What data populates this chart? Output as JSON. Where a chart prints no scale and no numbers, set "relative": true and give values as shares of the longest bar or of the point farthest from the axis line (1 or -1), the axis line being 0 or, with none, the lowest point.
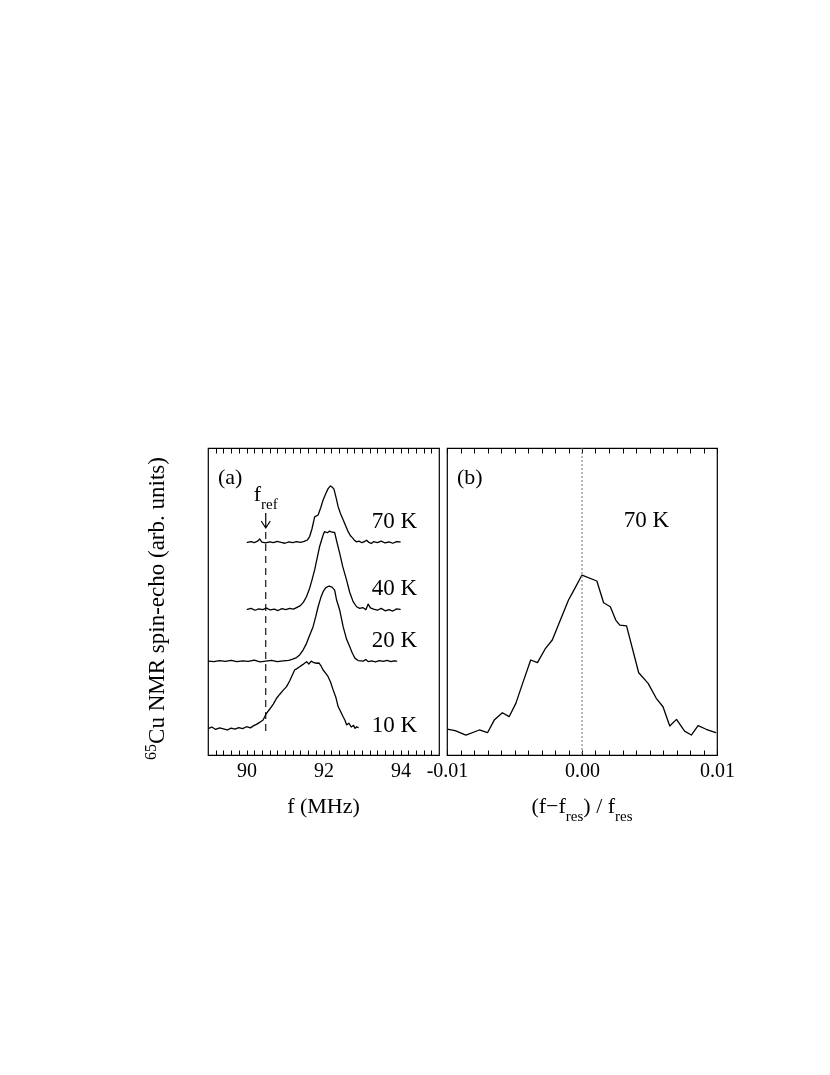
{
  "chart_data": [
    {
      "type": "line",
      "xlabel": "f (MHz)",
      "ylabel": "$^{65}$Cu NMR spin-echo (arb. units)",
      "annotations": [
        "(a)"
      ],
      "relative": true,
      "xlim": [
        89,
        95
      ],
      "xticks": [
        {
          "value": 89.2,
          "label": null
        },
        {
          "value": 89.4,
          "label": null
        },
        {
          "value": 89.6,
          "label": null
        },
        {
          "value": 89.8,
          "label": null
        },
        90,
        {
          "value": 90.2,
          "label": null
        },
        {
          "value": 90.4,
          "label": null
        },
        {
          "value": 90.6,
          "label": null
        },
        {
          "value": 90.8,
          "label": null
        },
        {
          "value": 91,
          "label": null
        },
        {
          "value": 91.2,
          "label": null
        },
        {
          "value": 91.4,
          "label": null
        },
        {
          "value": 91.6,
          "label": null
        },
        {
          "value": 91.8,
          "label": null
        },
        92,
        {
          "value": 92.2,
          "label": null
        },
        {
          "value": 92.4,
          "label": null
        },
        {
          "value": 92.6,
          "label": null
        },
        {
          "value": 92.8,
          "label": null
        },
        {
          "value": 93,
          "label": null
        },
        {
          "value": 93.2,
          "label": null
        },
        {
          "value": 93.4,
          "label": null
        },
        {
          "value": 93.6,
          "label": null
        },
        {
          "value": 93.8,
          "label": null
        },
        94,
        {
          "value": 94.2,
          "label": null
        },
        {
          "value": 94.4,
          "label": null
        },
        {
          "value": 94.6,
          "label": null
        },
        {
          "value": 94.8,
          "label": null
        }
      ],
      "ref_lines": [
        {
          "axis": "x",
          "value": 90.5,
          "label": "f$_{ref}$",
          "color": "#000000",
          "line_style": "dashed"
        }
      ],
      "series": [
        {
          "name": "70 K",
          "color": "#000000",
          "x": [
            90.02,
            90.12,
            90.2,
            90.3,
            90.34,
            90.4,
            90.5,
            90.6,
            90.7,
            90.8,
            90.9,
            91.0,
            91.1,
            91.2,
            91.3,
            91.4,
            91.5,
            91.58,
            91.64,
            91.7,
            91.77,
            91.86,
            91.93,
            91.99,
            92.06,
            92.12,
            92.18,
            92.22,
            92.27,
            92.33,
            92.38,
            92.44,
            92.51,
            92.58,
            92.64,
            92.7,
            92.76,
            92.81,
            92.86,
            92.92,
            93.0,
            93.06,
            93.12,
            93.18,
            93.24,
            93.3,
            93.4,
            93.5,
            93.6,
            93.7,
            93.8,
            93.9,
            93.99
          ],
          "values": [
            0.79,
            0.793,
            0.789,
            0.796,
            0.803,
            0.791,
            0.788,
            0.792,
            0.789,
            0.794,
            0.79,
            0.787,
            0.792,
            0.789,
            0.793,
            0.79,
            0.794,
            0.799,
            0.812,
            0.84,
            0.885,
            0.892,
            0.92,
            0.948,
            0.972,
            0.99,
            1.0,
            0.996,
            0.989,
            0.955,
            0.923,
            0.898,
            0.874,
            0.85,
            0.83,
            0.815,
            0.806,
            0.797,
            0.792,
            0.795,
            0.789,
            0.793,
            0.798,
            0.79,
            0.786,
            0.793,
            0.789,
            0.795,
            0.788,
            0.792,
            0.787,
            0.793,
            0.792
          ]
        },
        {
          "name": "40 K",
          "color": "#000000",
          "x": [
            90.02,
            90.12,
            90.22,
            90.32,
            90.42,
            90.52,
            90.62,
            90.72,
            90.82,
            90.92,
            91.02,
            91.12,
            91.22,
            91.3,
            91.4,
            91.48,
            91.56,
            91.64,
            91.7,
            91.77,
            91.84,
            91.9,
            91.95,
            92.0,
            92.03,
            92.1,
            92.16,
            92.22,
            92.29,
            92.35,
            92.42,
            92.5,
            92.6,
            92.68,
            92.77,
            92.86,
            92.94,
            93.02,
            93.1,
            93.16,
            93.22,
            93.3,
            93.4,
            93.5,
            93.6,
            93.7,
            93.8,
            93.9,
            93.99
          ],
          "values": [
            0.541,
            0.545,
            0.538,
            0.543,
            0.54,
            0.546,
            0.539,
            0.542,
            0.537,
            0.544,
            0.54,
            0.545,
            0.542,
            0.548,
            0.555,
            0.568,
            0.589,
            0.62,
            0.65,
            0.688,
            0.735,
            0.775,
            0.799,
            0.822,
            0.83,
            0.826,
            0.832,
            0.828,
            0.827,
            0.79,
            0.75,
            0.7,
            0.65,
            0.605,
            0.57,
            0.551,
            0.545,
            0.548,
            0.54,
            0.561,
            0.547,
            0.542,
            0.538,
            0.545,
            0.536,
            0.54,
            0.535,
            0.543,
            0.541
          ]
        },
        {
          "name": "20 K",
          "color": "#000000",
          "x": [
            89.02,
            89.15,
            89.3,
            89.45,
            89.6,
            89.75,
            89.9,
            90.05,
            90.2,
            90.35,
            90.5,
            90.65,
            90.8,
            90.95,
            91.1,
            91.2,
            91.3,
            91.38,
            91.47,
            91.56,
            91.64,
            91.73,
            91.8,
            91.86,
            91.93,
            91.99,
            92.06,
            92.15,
            92.22,
            92.29,
            92.34,
            92.42,
            92.51,
            92.6,
            92.68,
            92.75,
            92.82,
            92.9,
            93.03,
            93.1,
            93.16,
            93.25,
            93.35,
            93.45,
            93.55,
            93.65,
            93.75,
            93.83,
            93.9
          ],
          "values": [
            0.349,
            0.347,
            0.351,
            0.348,
            0.352,
            0.347,
            0.35,
            0.348,
            0.353,
            0.346,
            0.349,
            0.352,
            0.347,
            0.35,
            0.352,
            0.356,
            0.362,
            0.372,
            0.39,
            0.415,
            0.445,
            0.477,
            0.515,
            0.551,
            0.585,
            0.607,
            0.622,
            0.628,
            0.624,
            0.613,
            0.576,
            0.539,
            0.477,
            0.43,
            0.403,
            0.378,
            0.359,
            0.351,
            0.349,
            0.355,
            0.347,
            0.35,
            0.346,
            0.351,
            0.348,
            0.352,
            0.347,
            0.35,
            0.349
          ]
        },
        {
          "name": "10 K",
          "color": "#000000",
          "x": [
            89.02,
            89.1,
            89.2,
            89.3,
            89.4,
            89.5,
            89.6,
            89.7,
            89.8,
            89.9,
            90.0,
            90.1,
            90.2,
            90.26,
            90.35,
            90.43,
            90.52,
            90.6,
            90.7,
            90.78,
            90.86,
            90.95,
            91.04,
            91.12,
            91.2,
            91.25,
            91.32,
            91.38,
            91.45,
            91.5,
            91.56,
            91.62,
            91.68,
            91.75,
            91.82,
            91.88,
            91.94,
            91.99,
            92.05,
            92.12,
            92.18,
            92.25,
            92.32,
            92.38,
            92.45,
            92.51,
            92.56,
            92.6,
            92.66,
            92.72,
            92.78,
            92.82,
            92.86,
            92.9
          ],
          "values": [
            0.099,
            0.104,
            0.095,
            0.101,
            0.097,
            0.093,
            0.1,
            0.096,
            0.102,
            0.098,
            0.105,
            0.101,
            0.11,
            0.114,
            0.122,
            0.13,
            0.155,
            0.17,
            0.19,
            0.211,
            0.225,
            0.24,
            0.254,
            0.275,
            0.3,
            0.316,
            0.322,
            0.328,
            0.335,
            0.34,
            0.347,
            0.338,
            0.349,
            0.343,
            0.341,
            0.342,
            0.33,
            0.316,
            0.305,
            0.291,
            0.272,
            0.242,
            0.215,
            0.18,
            0.16,
            0.142,
            0.128,
            0.112,
            0.118,
            0.104,
            0.11,
            0.099,
            0.105,
            0.102
          ]
        }
      ]
    },
    {
      "type": "line",
      "xlabel": "(f−f$_{res}$) / f$_{res}$",
      "annotations": [
        "(b)"
      ],
      "relative": true,
      "xlim": [
        -0.01,
        0.01
      ],
      "xticks": [
        -0.01,
        {
          "value": -0.009,
          "label": null
        },
        {
          "value": -0.008,
          "label": null
        },
        {
          "value": -0.007,
          "label": null
        },
        {
          "value": -0.006,
          "label": null
        },
        {
          "value": -0.005,
          "label": null
        },
        {
          "value": -0.004,
          "label": null
        },
        {
          "value": -0.003,
          "label": null
        },
        {
          "value": -0.002,
          "label": null
        },
        {
          "value": -0.001,
          "label": null
        },
        {
          "value": 0,
          "label": "0.00"
        },
        {
          "value": 0.001,
          "label": null
        },
        {
          "value": 0.002,
          "label": null
        },
        {
          "value": 0.003,
          "label": null
        },
        {
          "value": 0.004,
          "label": null
        },
        {
          "value": 0.005,
          "label": null
        },
        {
          "value": 0.006,
          "label": null
        },
        {
          "value": 0.007,
          "label": null
        },
        {
          "value": 0.008,
          "label": null
        },
        {
          "value": 0.009,
          "label": null
        },
        0.01
      ],
      "ref_lines": [
        {
          "axis": "x",
          "value": 0,
          "color": "#808080",
          "line_style": "dotted"
        }
      ],
      "series": [
        {
          "name": "70 K",
          "color": "#000000",
          "x": [
            -0.0099,
            -0.0094,
            -0.0086,
            -0.0076,
            -0.007,
            -0.0065,
            -0.0059,
            -0.0054,
            -0.0049,
            -0.0044,
            -0.0038,
            -0.0033,
            -0.0027,
            -0.0022,
            -0.0017,
            -0.001,
            -0.0007,
            0,
            0.0011,
            0.0016,
            0.0021,
            0.0025,
            0.0028,
            0.0033,
            0.0042,
            0.0049,
            0.0055,
            0.006,
            0.0065,
            0.007,
            0.0076,
            0.0081,
            0.0086,
            0.0092,
            0.0099
          ],
          "values": [
            0.143,
            0.135,
            0.111,
            0.139,
            0.124,
            0.194,
            0.235,
            0.213,
            0.287,
            0.398,
            0.528,
            0.513,
            0.593,
            0.639,
            0.732,
            0.861,
            0.902,
            1.0,
            0.967,
            0.846,
            0.824,
            0.75,
            0.722,
            0.718,
            0.457,
            0.398,
            0.315,
            0.268,
            0.161,
            0.198,
            0.133,
            0.111,
            0.163,
            0.143,
            0.124
          ]
        }
      ]
    }
  ]
}
